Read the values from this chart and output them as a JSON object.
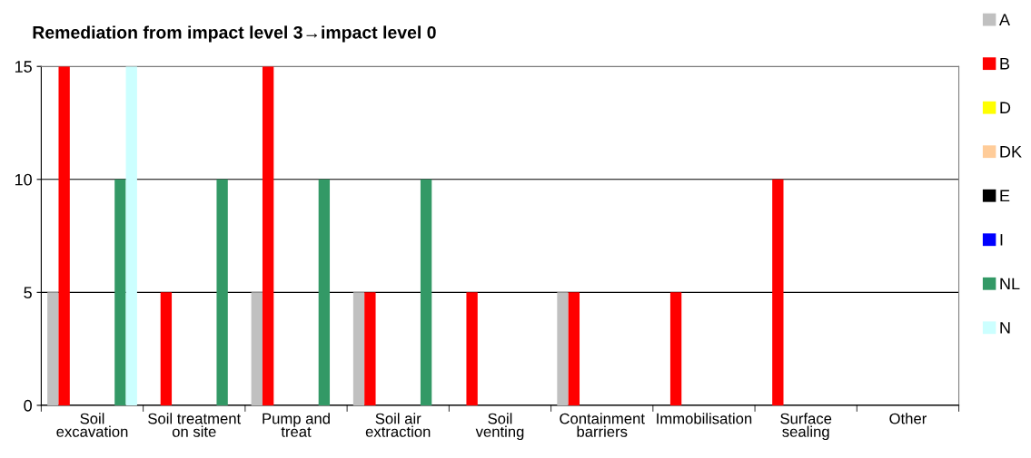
{
  "chart_data": {
    "type": "bar",
    "title": "Remediation from impact level 3→impact level 0",
    "categories": [
      "Soil\nexcavation",
      "Soil treatment\non site",
      "Pump and\ntreat",
      "Soil air\nextraction",
      "Soil\nventing",
      "Containment\nbarriers",
      "Immobilisation",
      "Surface\nsealing",
      "Other"
    ],
    "series": [
      {
        "name": "A",
        "color": "#c0c0c0",
        "values": [
          5,
          0,
          5,
          5,
          0,
          5,
          0,
          0,
          0
        ]
      },
      {
        "name": "B",
        "color": "#ff0000",
        "values": [
          15,
          5,
          15,
          5,
          5,
          5,
          5,
          10,
          0
        ]
      },
      {
        "name": "D",
        "color": "#ffff00",
        "values": [
          0,
          0,
          0,
          0,
          0,
          0,
          0,
          0,
          0
        ]
      },
      {
        "name": "DK",
        "color": "#ffcc99",
        "values": [
          0,
          0,
          0,
          0,
          0,
          0,
          0,
          0,
          0
        ]
      },
      {
        "name": "E",
        "color": "#000000",
        "values": [
          0,
          0,
          0,
          0,
          0,
          0,
          0,
          0,
          0
        ]
      },
      {
        "name": "I",
        "color": "#0000ff",
        "values": [
          0,
          0,
          0,
          0,
          0,
          0,
          0,
          0,
          0
        ]
      },
      {
        "name": "NL",
        "color": "#339966",
        "values": [
          10,
          10,
          10,
          10,
          0,
          0,
          0,
          0,
          0
        ]
      },
      {
        "name": "N",
        "color": "#ccffff",
        "values": [
          15,
          0,
          0,
          0,
          0,
          0,
          0,
          0,
          0
        ]
      }
    ],
    "ylim": [
      0,
      15
    ],
    "yticks": [
      0,
      5,
      10,
      15
    ],
    "grid": "y",
    "legend": "right"
  }
}
